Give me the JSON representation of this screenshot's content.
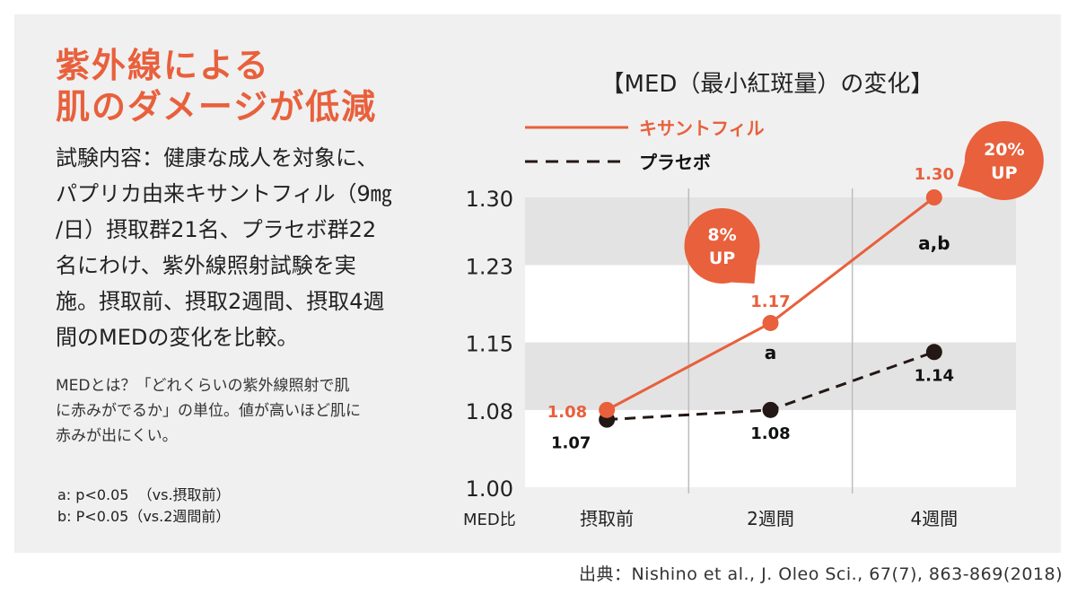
{
  "colors": {
    "accent": "#e8603c",
    "dark": "#231815",
    "panel_bg": "#f0f0f0",
    "band": "#e3e3e3"
  },
  "headline": [
    "紫外線による",
    "肌のダメージが低減"
  ],
  "description": [
    "試験内容：健康な成人を対象に、",
    "パプリカ由来キサントフィル（9㎎",
    "/日）摂取群21名、プラセボ群22",
    "名にわけ、紫外線照射試験を実",
    "施。摂取前、摂取2週間、摂取4週",
    "間のMEDの変化を比較。"
  ],
  "note": [
    "MEDとは？「どれくらいの紫外線照射で肌",
    "に赤みがでるか」の単位。値が高いほど肌に",
    "赤みが出にくい。"
  ],
  "significance": [
    "a: p<0.05  （vs.摂取前）",
    "b: P<0.05（vs.2週間前）"
  ],
  "source": "出典：Nishino et al., J. Oleo Sci., 67(7), 863-869(2018)",
  "chart_data": {
    "type": "line",
    "title": "【MED（最小紅斑量）の変化】",
    "categories": [
      "摂取前",
      "2週間",
      "4週間"
    ],
    "ylabel": "MED比",
    "xlabel": "",
    "ylim": [
      1.0,
      1.3
    ],
    "yticks": [
      1.0,
      1.08,
      1.15,
      1.23,
      1.3
    ],
    "grid": true,
    "legend_position": "top-left",
    "series": [
      {
        "name": "キサントフィル",
        "style": "solid",
        "values": [
          1.08,
          1.17,
          1.3
        ],
        "labels": [
          "1.08",
          "1.17",
          "1.30"
        ]
      },
      {
        "name": "プラセボ",
        "style": "dashed",
        "values": [
          1.07,
          1.08,
          1.14
        ],
        "labels": [
          "1.07",
          "1.08",
          "1.14"
        ]
      }
    ],
    "annotations": [
      {
        "category": "2週間",
        "text": "a"
      },
      {
        "category": "4週間",
        "text": "a,b"
      }
    ],
    "badges": [
      {
        "category": "2週間",
        "line1": "8%",
        "line2": "UP"
      },
      {
        "category": "4週間",
        "line1": "20%",
        "line2": "UP"
      }
    ]
  }
}
